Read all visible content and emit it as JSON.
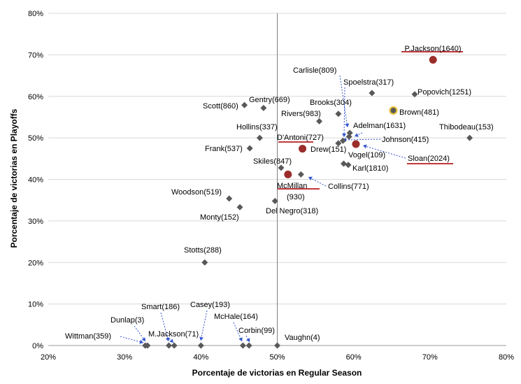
{
  "chart_data": {
    "type": "scatter",
    "title": "",
    "xlabel": "Porcentaje de victorias en Regular Season",
    "ylabel": "Porcentaje de victorias en Playoffs",
    "xlim": [
      0.2,
      0.8
    ],
    "ylim": [
      0.0,
      0.8
    ],
    "x_ticks": [
      0.2,
      0.3,
      0.4,
      0.5,
      0.6,
      0.7,
      0.8
    ],
    "x_tick_labels": [
      "20%",
      "30%",
      "40%",
      "50%",
      "60%",
      "70%",
      "80%"
    ],
    "y_ticks": [
      0.0,
      0.1,
      0.2,
      0.3,
      0.4,
      0.5,
      0.6,
      0.7,
      0.8
    ],
    "y_tick_labels": [
      "0%",
      "10%",
      "20%",
      "30%",
      "40%",
      "50%",
      "60%",
      "70%",
      "80%"
    ],
    "grid": "horizontal",
    "reference_lines": {
      "x": 0.5
    },
    "colors": {
      "diamond": "#595959",
      "highlight": "#9b2d2a",
      "ring": "#e8c23a",
      "arrow": "#3355cc",
      "underline": "#c0393b"
    },
    "points": [
      {
        "name": "P.Jackson(1640)",
        "x": 0.704,
        "y": 0.688,
        "marker": "circle",
        "underline": true
      },
      {
        "name": "Popovich(1251)",
        "x": 0.68,
        "y": 0.605,
        "marker": "diamond"
      },
      {
        "name": "Spoelstra(317)",
        "x": 0.624,
        "y": 0.608,
        "marker": "diamond"
      },
      {
        "name": "Brown(481)",
        "x": 0.652,
        "y": 0.566,
        "marker": "ring"
      },
      {
        "name": "Thibodeau(153)",
        "x": 0.752,
        "y": 0.5,
        "marker": "diamond"
      },
      {
        "name": "Scott(860)",
        "x": 0.457,
        "y": 0.579,
        "marker": "diamond"
      },
      {
        "name": "Gentry(669)",
        "x": 0.482,
        "y": 0.572,
        "marker": "diamond"
      },
      {
        "name": "Brooks(304)",
        "x": 0.58,
        "y": 0.558,
        "marker": "diamond"
      },
      {
        "name": "Rivers(983)",
        "x": 0.555,
        "y": 0.54,
        "marker": "diamond"
      },
      {
        "name": "Carlisle(809)",
        "x": 0.595,
        "y": 0.512,
        "marker": "diamond"
      },
      {
        "name": "Adelman(1631)",
        "x": 0.594,
        "y": 0.503,
        "marker": "diamond"
      },
      {
        "name": "Hollins(337)",
        "x": 0.477,
        "y": 0.5,
        "marker": "diamond"
      },
      {
        "name": "Johnson(415)",
        "x": 0.586,
        "y": 0.493,
        "marker": "diamond"
      },
      {
        "name": "Sloan(2024)",
        "x": 0.603,
        "y": 0.485,
        "marker": "circle",
        "underline": true
      },
      {
        "name": "D'Antoni(727)",
        "x": 0.58,
        "y": 0.487,
        "marker": "diamond",
        "underline": true
      },
      {
        "name": "Frank(537)",
        "x": 0.464,
        "y": 0.475,
        "marker": "diamond"
      },
      {
        "name": "Drew(151)",
        "x": 0.533,
        "y": 0.474,
        "marker": "circle"
      },
      {
        "name": "Vogel(109)",
        "x": 0.587,
        "y": 0.438,
        "marker": "diamond"
      },
      {
        "name": "Karl(1810)",
        "x": 0.593,
        "y": 0.435,
        "marker": "diamond"
      },
      {
        "name": "Skiles(847)",
        "x": 0.505,
        "y": 0.428,
        "marker": "diamond"
      },
      {
        "name": "McMillan(930)",
        "x": 0.514,
        "y": 0.412,
        "marker": "circle",
        "underline": true
      },
      {
        "name": "Collins(771)",
        "x": 0.531,
        "y": 0.412,
        "marker": "diamond"
      },
      {
        "name": "Woodson(519)",
        "x": 0.437,
        "y": 0.354,
        "marker": "diamond"
      },
      {
        "name": "Monty(152)",
        "x": 0.451,
        "y": 0.333,
        "marker": "diamond"
      },
      {
        "name": "Del Negro(318)",
        "x": 0.497,
        "y": 0.348,
        "marker": "diamond"
      },
      {
        "name": "Stotts(288)",
        "x": 0.405,
        "y": 0.2,
        "marker": "diamond"
      },
      {
        "name": "Wittman(359)",
        "x": 0.327,
        "y": 0.0,
        "marker": "diamond"
      },
      {
        "name": "Dunlap(3)",
        "x": 0.33,
        "y": 0.0,
        "marker": "diamond"
      },
      {
        "name": "Smart(186)",
        "x": 0.358,
        "y": 0.0,
        "marker": "diamond"
      },
      {
        "name": "M.Jackson(71)",
        "x": 0.365,
        "y": 0.0,
        "marker": "diamond"
      },
      {
        "name": "Casey(193)",
        "x": 0.4,
        "y": 0.0,
        "marker": "diamond"
      },
      {
        "name": "McHale(164)",
        "x": 0.455,
        "y": 0.0,
        "marker": "diamond"
      },
      {
        "name": "Corbin(99)",
        "x": 0.463,
        "y": 0.0,
        "marker": "diamond"
      },
      {
        "name": "Vaughn(4)",
        "x": 0.5,
        "y": 0.0,
        "marker": "diamond"
      }
    ]
  }
}
